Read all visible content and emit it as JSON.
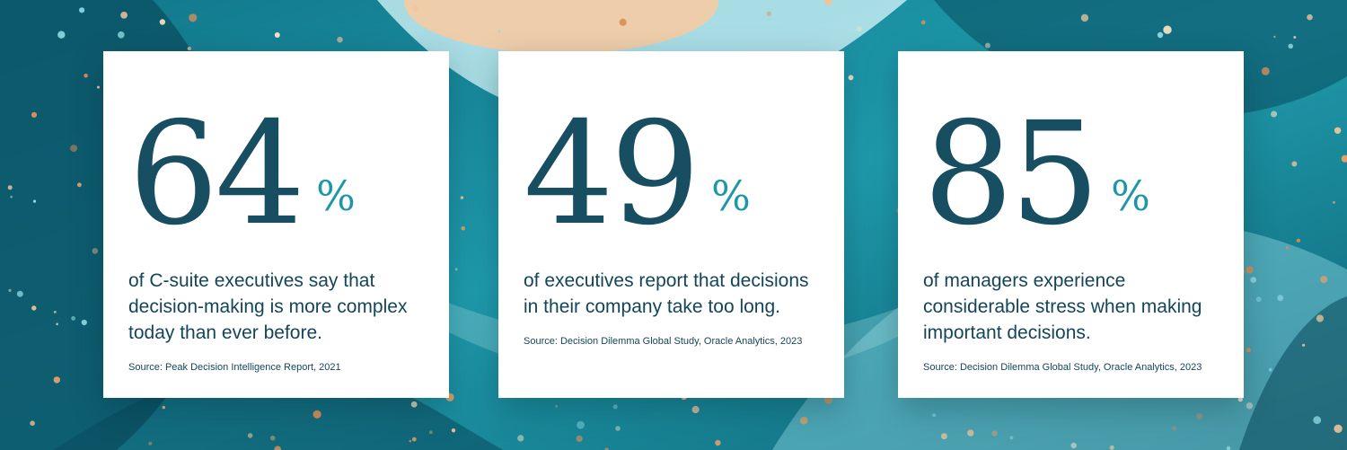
{
  "chart_data": {
    "type": "table",
    "unit": "%",
    "values": [
      64,
      49,
      85
    ],
    "labels": [
      "of C-suite executives say that decision-making is more complex today than ever before.",
      "of executives report that decisions in their company take too long.",
      "of managers experience considerable stress when making important decisions."
    ],
    "sources": [
      "Source: Peak Decision Intelligence Report, 2021",
      "Source: Decision Dilemma Global Study, Oracle Analytics, 2023",
      "Source: Decision Dilemma Global Study, Oracle Analytics, 2023"
    ]
  },
  "cards": [
    {
      "value": "64",
      "percent_sign": "%",
      "description": "of C-suite executives say that decision-making is more complex today than ever before.",
      "source": "Source: Peak Decision Intelligence Report, 2021"
    },
    {
      "value": "49",
      "percent_sign": "%",
      "description": "of executives report that decisions in their company take too long.",
      "source": "Source: Decision Dilemma Global Study, Oracle Analytics, 2023"
    },
    {
      "value": "85",
      "percent_sign": "%",
      "description": "of managers experience considerable stress when making important decisions.",
      "source": "Source: Decision Dilemma Global Study, Oracle Analytics, 2023"
    }
  ],
  "colors": {
    "number": "#174e62",
    "percent": "#1d96a8",
    "body_text": "#14455a",
    "card_background": "#ffffff",
    "background_teal": "#1b93a5",
    "dot_copper": "#e2a06b"
  }
}
